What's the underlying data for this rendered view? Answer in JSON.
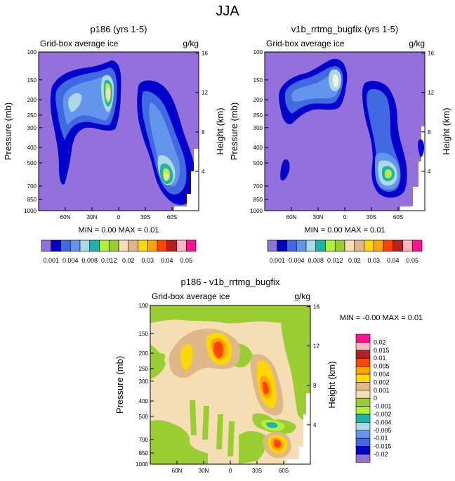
{
  "page": {
    "title": "JJA"
  },
  "chart_data": [
    {
      "type": "contour",
      "title": "p186 (yrs 1-5)",
      "subtitle": "Grid-box average ice",
      "units": "g/kg",
      "ylabel": "Pressure (mb)",
      "ylabel_right": "Height (km)",
      "x_ticks": [
        "60N",
        "30N",
        "0",
        "30S",
        "60S"
      ],
      "y_ticks": [
        "100",
        "150",
        "200",
        "250",
        "300",
        "400",
        "500",
        "700",
        "850",
        "1000"
      ],
      "y2_ticks": [
        "16",
        "12",
        "8",
        "4"
      ],
      "stats": "MIN =  0.00  MAX =  0.01",
      "levels": [
        "0.001",
        "0.004",
        "0.008",
        "0.012",
        "0.02",
        "0.03",
        "0.04",
        "0.05"
      ],
      "colors": [
        "#9370db",
        "#0000cd",
        "#4169e1",
        "#6495ed",
        "#add8e6",
        "#20b2aa",
        "#b3ee3a",
        "#9acd32",
        "#f5deb3",
        "#deb887",
        "#ffd700",
        "#ffa500",
        "#ff4500",
        "#b22222",
        "#ffb6c1",
        "#ff1493"
      ]
    },
    {
      "type": "contour",
      "title": "v1b_rrtmg_bugfix (yrs 1-5)",
      "subtitle": "Grid-box average ice",
      "units": "g/kg",
      "ylabel": "Pressure (mb)",
      "ylabel_right": "Height (km)",
      "x_ticks": [
        "60N",
        "30N",
        "0",
        "30S",
        "60S"
      ],
      "y_ticks": [
        "100",
        "150",
        "200",
        "250",
        "300",
        "400",
        "500",
        "700",
        "850",
        "1000"
      ],
      "y2_ticks": [
        "16",
        "12",
        "8",
        "4"
      ],
      "stats": "MIN =  0.00  MAX =  0.01",
      "levels": [
        "0.001",
        "0.004",
        "0.008",
        "0.012",
        "0.02",
        "0.03",
        "0.04",
        "0.05"
      ]
    },
    {
      "type": "contour",
      "title": "p186 - v1b_rrtmg_bugfix",
      "subtitle": "Grid-box average ice",
      "units": "g/kg",
      "ylabel": "Pressure (mb)",
      "ylabel_right": "Height (km)",
      "x_ticks": [
        "60N",
        "30N",
        "0",
        "30S",
        "60S"
      ],
      "y_ticks": [
        "100",
        "150",
        "200",
        "250",
        "300",
        "400",
        "500",
        "700",
        "850",
        "1000"
      ],
      "y2_ticks": [
        "16",
        "12",
        "8",
        "4"
      ],
      "stats": "MIN = -0.00  MAX =  0.01",
      "levels": [
        "0.02",
        "0.015",
        "0.01",
        "0.005",
        "0.004",
        "0.002",
        "0.001",
        "0",
        "-0.001",
        "-0.002",
        "-0.004",
        "-0.005",
        "-0.01",
        "-0.015",
        "-0.02"
      ],
      "colors": [
        "#ff1493",
        "#ffb6c1",
        "#b22222",
        "#ff4500",
        "#ffa500",
        "#ffd700",
        "#deb887",
        "#f5deb3",
        "#9acd32",
        "#b3ee3a",
        "#20b2aa",
        "#add8e6",
        "#6495ed",
        "#4169e1",
        "#0000cd",
        "#9370db"
      ]
    }
  ]
}
